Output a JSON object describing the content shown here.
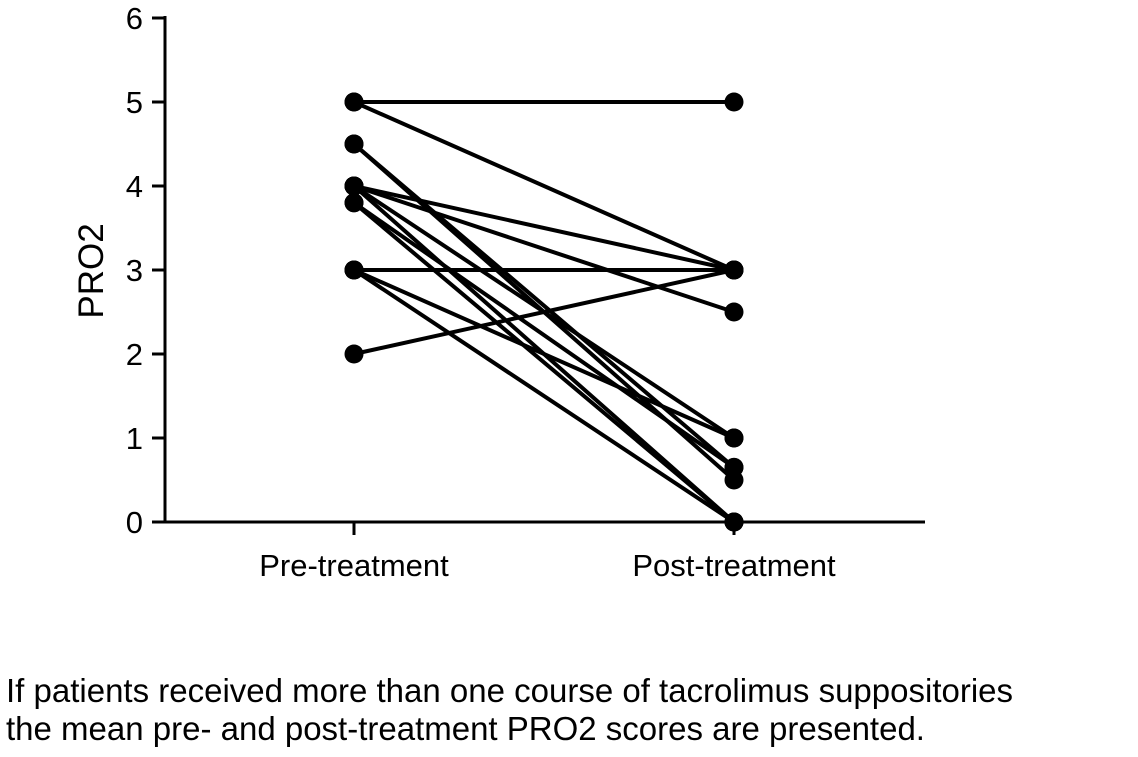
{
  "chart_data": {
    "type": "line",
    "x_categories": [
      "Pre-treatment",
      "Post-treatment"
    ],
    "ylabel": "PRO2",
    "ylim": [
      0,
      6
    ],
    "yticks": [
      0,
      1,
      2,
      3,
      4,
      5,
      6
    ],
    "grid": false,
    "marker": "filled-circle",
    "line_color": "#000000",
    "pairs": [
      [
        5,
        5
      ],
      [
        5,
        3
      ],
      [
        4.5,
        0.5
      ],
      [
        4.5,
        0.65
      ],
      [
        4,
        3
      ],
      [
        4,
        2.5
      ],
      [
        4,
        1
      ],
      [
        4,
        0
      ],
      [
        3.8,
        0.65
      ],
      [
        3.8,
        0
      ],
      [
        3,
        3
      ],
      [
        3,
        1
      ],
      [
        3,
        0
      ],
      [
        2,
        3
      ]
    ]
  },
  "caption": {
    "line1": "If patients received more than one course of tacrolimus suppositories",
    "line2": "the mean pre- and post-treatment PRO2 scores are presented."
  }
}
